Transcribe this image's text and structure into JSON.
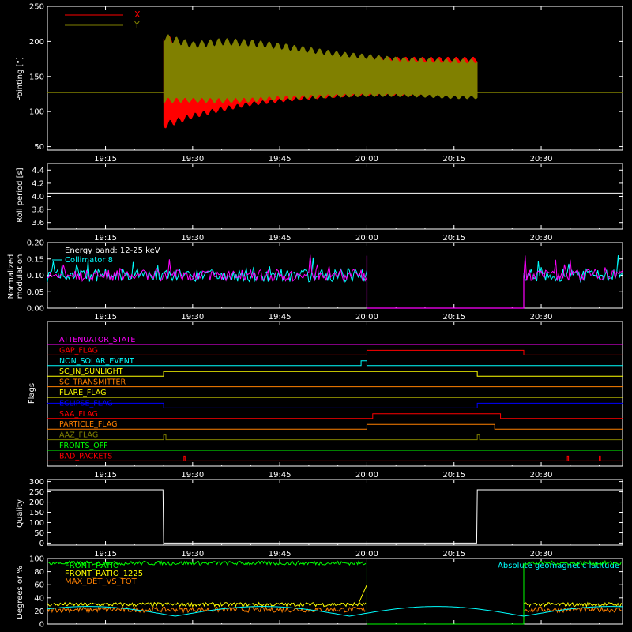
{
  "x_axis": {
    "start": "19:05",
    "end": "20:44",
    "ticks": [
      "19:15",
      "19:30",
      "19:45",
      "20:00",
      "20:15",
      "20:30"
    ],
    "tick_minutes": [
      10,
      25,
      40,
      55,
      70,
      85
    ],
    "range_minutes_since_1905": [
      0,
      99
    ]
  },
  "colors": {
    "background": "#000000",
    "axis": "#ffffff",
    "x_red": "#ff0000",
    "y_olive": "#808000",
    "magenta": "#ff00ff",
    "cyan": "#00ffff",
    "yellow": "#ffff00",
    "green": "#00ff00",
    "orange": "#ff8000",
    "blue": "#0000ff"
  },
  "chart_data": [
    {
      "id": "pointing",
      "type": "area",
      "ylabel": "Pointing [\"]",
      "ylim": [
        45,
        250
      ],
      "yticks": [
        "50",
        "100",
        "150",
        "200",
        "250"
      ],
      "ytick_values": [
        50,
        100,
        150,
        200,
        250
      ],
      "legend": [
        {
          "label": "X",
          "color": "#ff0000"
        },
        {
          "label": "Y",
          "color": "#808000"
        }
      ],
      "baseline": 127,
      "x_minutes": [
        20,
        25,
        30,
        35,
        40,
        45,
        50,
        55,
        60,
        65,
        70,
        74
      ],
      "series": [
        {
          "name": "X",
          "upper": [
            212,
            190,
            190,
            188,
            185,
            182,
            180,
            178,
            178,
            178,
            178,
            178
          ],
          "lower": [
            75,
            90,
            100,
            108,
            113,
            117,
            120,
            122,
            122,
            122,
            122,
            122
          ]
        },
        {
          "name": "Y",
          "upper": [
            212,
            200,
            205,
            203,
            198,
            192,
            186,
            182,
            178,
            176,
            175,
            175
          ],
          "lower": [
            112,
            113,
            112,
            113,
            116,
            118,
            120,
            121,
            121,
            120,
            118,
            118
          ]
        }
      ]
    },
    {
      "id": "roll",
      "type": "line",
      "ylabel": "Roll period [s]",
      "ylim": [
        3.5,
        4.5
      ],
      "yticks": [
        "3.6",
        "3.8",
        "4.0",
        "4.2",
        "4.4"
      ],
      "ytick_values": [
        3.6,
        3.8,
        4.0,
        4.2,
        4.4
      ],
      "value": 4.05
    },
    {
      "id": "modulation",
      "type": "line",
      "ylabel_lines": [
        "Normalized",
        "modulation"
      ],
      "ylim": [
        0,
        0.2
      ],
      "yticks": [
        "0.00",
        "0.05",
        "0.10",
        "0.15",
        "0.20"
      ],
      "ytick_values": [
        0,
        0.05,
        0.1,
        0.15,
        0.2
      ],
      "annotations": [
        {
          "text": "Energy band: 12-25 keV",
          "color": "#ffffff"
        },
        {
          "text": "Collimator 8",
          "color": "#00ffff"
        }
      ],
      "segments_on": [
        [
          0,
          55
        ],
        [
          82,
          99
        ]
      ],
      "typical_value": 0.1,
      "gap_value": 0.0
    },
    {
      "id": "flags",
      "type": "line",
      "ylabel": "Flags",
      "flags": [
        {
          "label": "ATTENUATOR_STATE",
          "color": "#ff00ff",
          "highs": []
        },
        {
          "label": "GAP_FLAG",
          "color": "#ff0000",
          "highs": [
            [
              55,
              82
            ]
          ]
        },
        {
          "label": "NON_SOLAR_EVENT",
          "color": "#00ffff",
          "highs": [
            [
              54,
              55
            ]
          ]
        },
        {
          "label": "SC_IN_SUNLIGHT",
          "color": "#ffff00",
          "highs": [
            [
              20,
              74
            ]
          ]
        },
        {
          "label": "SC_TRANSMITTER",
          "color": "#ff8000",
          "highs": []
        },
        {
          "label": "FLARE_FLAG",
          "color": "#ffff00",
          "highs": []
        },
        {
          "label": "ECLIPSE_FLAG",
          "color": "#0000ff",
          "highs": [
            [
              0,
              20
            ],
            [
              74,
              99
            ]
          ]
        },
        {
          "label": "SAA_FLAG",
          "color": "#ff0000",
          "highs": [
            [
              56,
              78
            ]
          ]
        },
        {
          "label": "PARTICLE_FLAG",
          "color": "#ff8000",
          "highs": [
            [
              55,
              77
            ]
          ]
        },
        {
          "label": "AAZ_FLAG",
          "color": "#808000",
          "highs": [
            [
              20,
              20.4
            ],
            [
              74,
              74.4
            ]
          ]
        },
        {
          "label": "FRONTS_OFF",
          "color": "#00ff00",
          "highs": []
        },
        {
          "label": "BAD_PACKETS",
          "color": "#ff0000",
          "highs": [
            [
              23.5,
              23.7
            ],
            [
              89.5,
              89.7
            ],
            [
              95,
              95.2
            ]
          ]
        }
      ]
    },
    {
      "id": "quality",
      "type": "line",
      "ylabel": "Quality",
      "ylim": [
        -10,
        310
      ],
      "yticks": [
        "0",
        "50",
        "100",
        "150",
        "200",
        "250",
        "300"
      ],
      "ytick_values": [
        0,
        50,
        100,
        150,
        200,
        250,
        300
      ],
      "x_minutes": [
        0,
        19.9,
        20,
        73.9,
        74,
        99
      ],
      "values": [
        260,
        260,
        0,
        0,
        260,
        260
      ]
    },
    {
      "id": "front_ratio",
      "type": "line",
      "ylabel": "Degrees or %",
      "ylim": [
        0,
        100
      ],
      "yticks": [
        "0",
        "20",
        "40",
        "60",
        "80",
        "100"
      ],
      "ytick_values": [
        0,
        20,
        40,
        60,
        80,
        100
      ],
      "legend": [
        {
          "label": "FRONT_RATIO",
          "color": "#00ff00"
        },
        {
          "label": "FRONT_RATIO_1225",
          "color": "#ffff00"
        },
        {
          "label": "MAX_DET_VS_TOT",
          "color": "#ff8000"
        }
      ],
      "right_label": {
        "text": "Absolute geomagnetic latitude",
        "color": "#00ffff"
      },
      "levels": {
        "FRONT_RATIO": 93,
        "FRONT_RATIO_1225": 30,
        "MAX_DET_VS_TOT": 22
      },
      "segments_on": [
        [
          0,
          55
        ],
        [
          82,
          99
        ]
      ]
    }
  ]
}
